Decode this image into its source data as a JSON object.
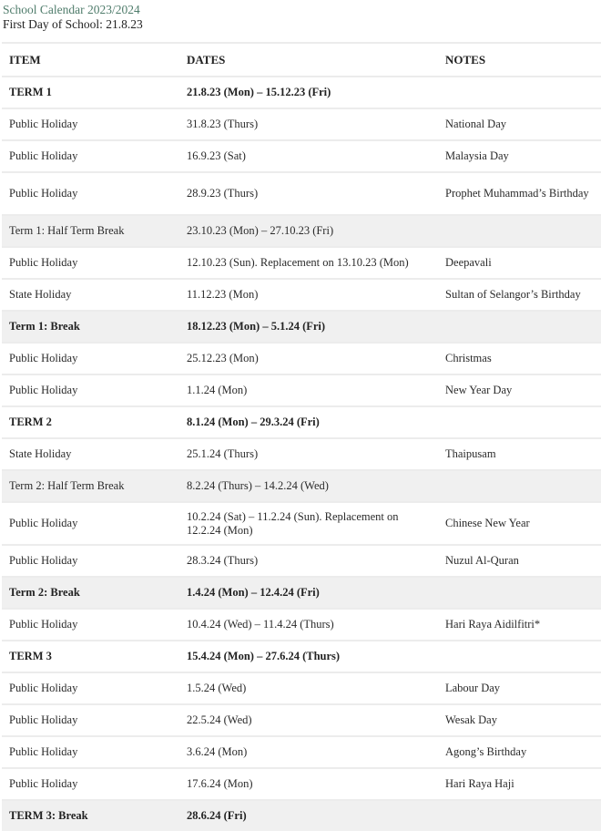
{
  "title": "School Calendar 2023/2024",
  "subtitle": "First Day of School: 21.8.23",
  "colors": {
    "title": "#4f7c6b",
    "shade": "#f0f0f0"
  },
  "table": {
    "headers": [
      "ITEM",
      "DATES",
      "NOTES"
    ],
    "rows": [
      {
        "item": "TERM 1",
        "dates": "21.8.23 (Mon) – 15.12.23 (Fri)",
        "notes": "",
        "bold": true,
        "shade": false
      },
      {
        "item": "Public Holiday",
        "dates": "31.8.23 (Thurs)",
        "notes": "National Day"
      },
      {
        "item": "Public Holiday",
        "dates": "16.9.23 (Sat)",
        "notes": "Malaysia Day"
      },
      {
        "item": "Public Holiday",
        "dates": "28.9.23 (Thurs)",
        "notes": "Prophet Muhammad’s Birthday",
        "tall": true
      },
      {
        "item": "Term 1: Half Term Break",
        "dates": "23.10.23 (Mon) – 27.10.23 (Fri)",
        "notes": "",
        "shade": true
      },
      {
        "item": "Public Holiday",
        "dates": "12.10.23 (Sun). Replacement on 13.10.23 (Mon)",
        "notes": "Deepavali"
      },
      {
        "item": "State Holiday",
        "dates": "11.12.23 (Mon)",
        "notes": "Sultan of Selangor’s Birthday"
      },
      {
        "item": "Term 1: Break",
        "dates": "18.12.23 (Mon) – 5.1.24 (Fri)",
        "notes": "",
        "bold": true,
        "shade": true
      },
      {
        "item": "Public Holiday",
        "dates": "25.12.23 (Mon)",
        "notes": "Christmas"
      },
      {
        "item": "Public Holiday",
        "dates": "1.1.24 (Mon)",
        "notes": "New Year Day"
      },
      {
        "item": "TERM 2",
        "dates": "8.1.24 (Mon) – 29.3.24 (Fri)",
        "notes": "",
        "bold": true
      },
      {
        "item": "State Holiday",
        "dates": "25.1.24 (Thurs)",
        "notes": "Thaipusam"
      },
      {
        "item": "Term 2: Half Term Break",
        "dates": "8.2.24 (Thurs) – 14.2.24 (Wed)",
        "notes": "",
        "shade": true
      },
      {
        "item": "Public Holiday",
        "dates": "10.2.24 (Sat) – 11.2.24 (Sun). Replacement on 12.2.24 (Mon)",
        "notes": "Chinese New Year",
        "tall": true
      },
      {
        "item": "Public Holiday",
        "dates": "28.3.24 (Thurs)",
        "notes": "Nuzul Al-Quran"
      },
      {
        "item": "Term 2: Break",
        "dates": "1.4.24 (Mon) – 12.4.24 (Fri)",
        "notes": "",
        "bold": true,
        "shade": true
      },
      {
        "item": "Public Holiday",
        "dates": "10.4.24 (Wed) – 11.4.24 (Thurs)",
        "notes": "Hari Raya Aidilfitri*"
      },
      {
        "item": "TERM 3",
        "dates": "15.4.24 (Mon) – 27.6.24 (Thurs)",
        "notes": "",
        "bold": true
      },
      {
        "item": "Public Holiday",
        "dates": "1.5.24 (Wed)",
        "notes": "Labour Day"
      },
      {
        "item": "Public Holiday",
        "dates": "22.5.24 (Wed)",
        "notes": "Wesak Day"
      },
      {
        "item": "Public Holiday",
        "dates": "3.6.24 (Mon)",
        "notes": "Agong’s Birthday"
      },
      {
        "item": "Public Holiday",
        "dates": "17.6.24 (Mon)",
        "notes": "Hari Raya Haji"
      },
      {
        "item": "TERM 3: Break",
        "dates": "28.6.24 (Fri)",
        "notes": "",
        "bold": true,
        "shade": true
      }
    ]
  }
}
